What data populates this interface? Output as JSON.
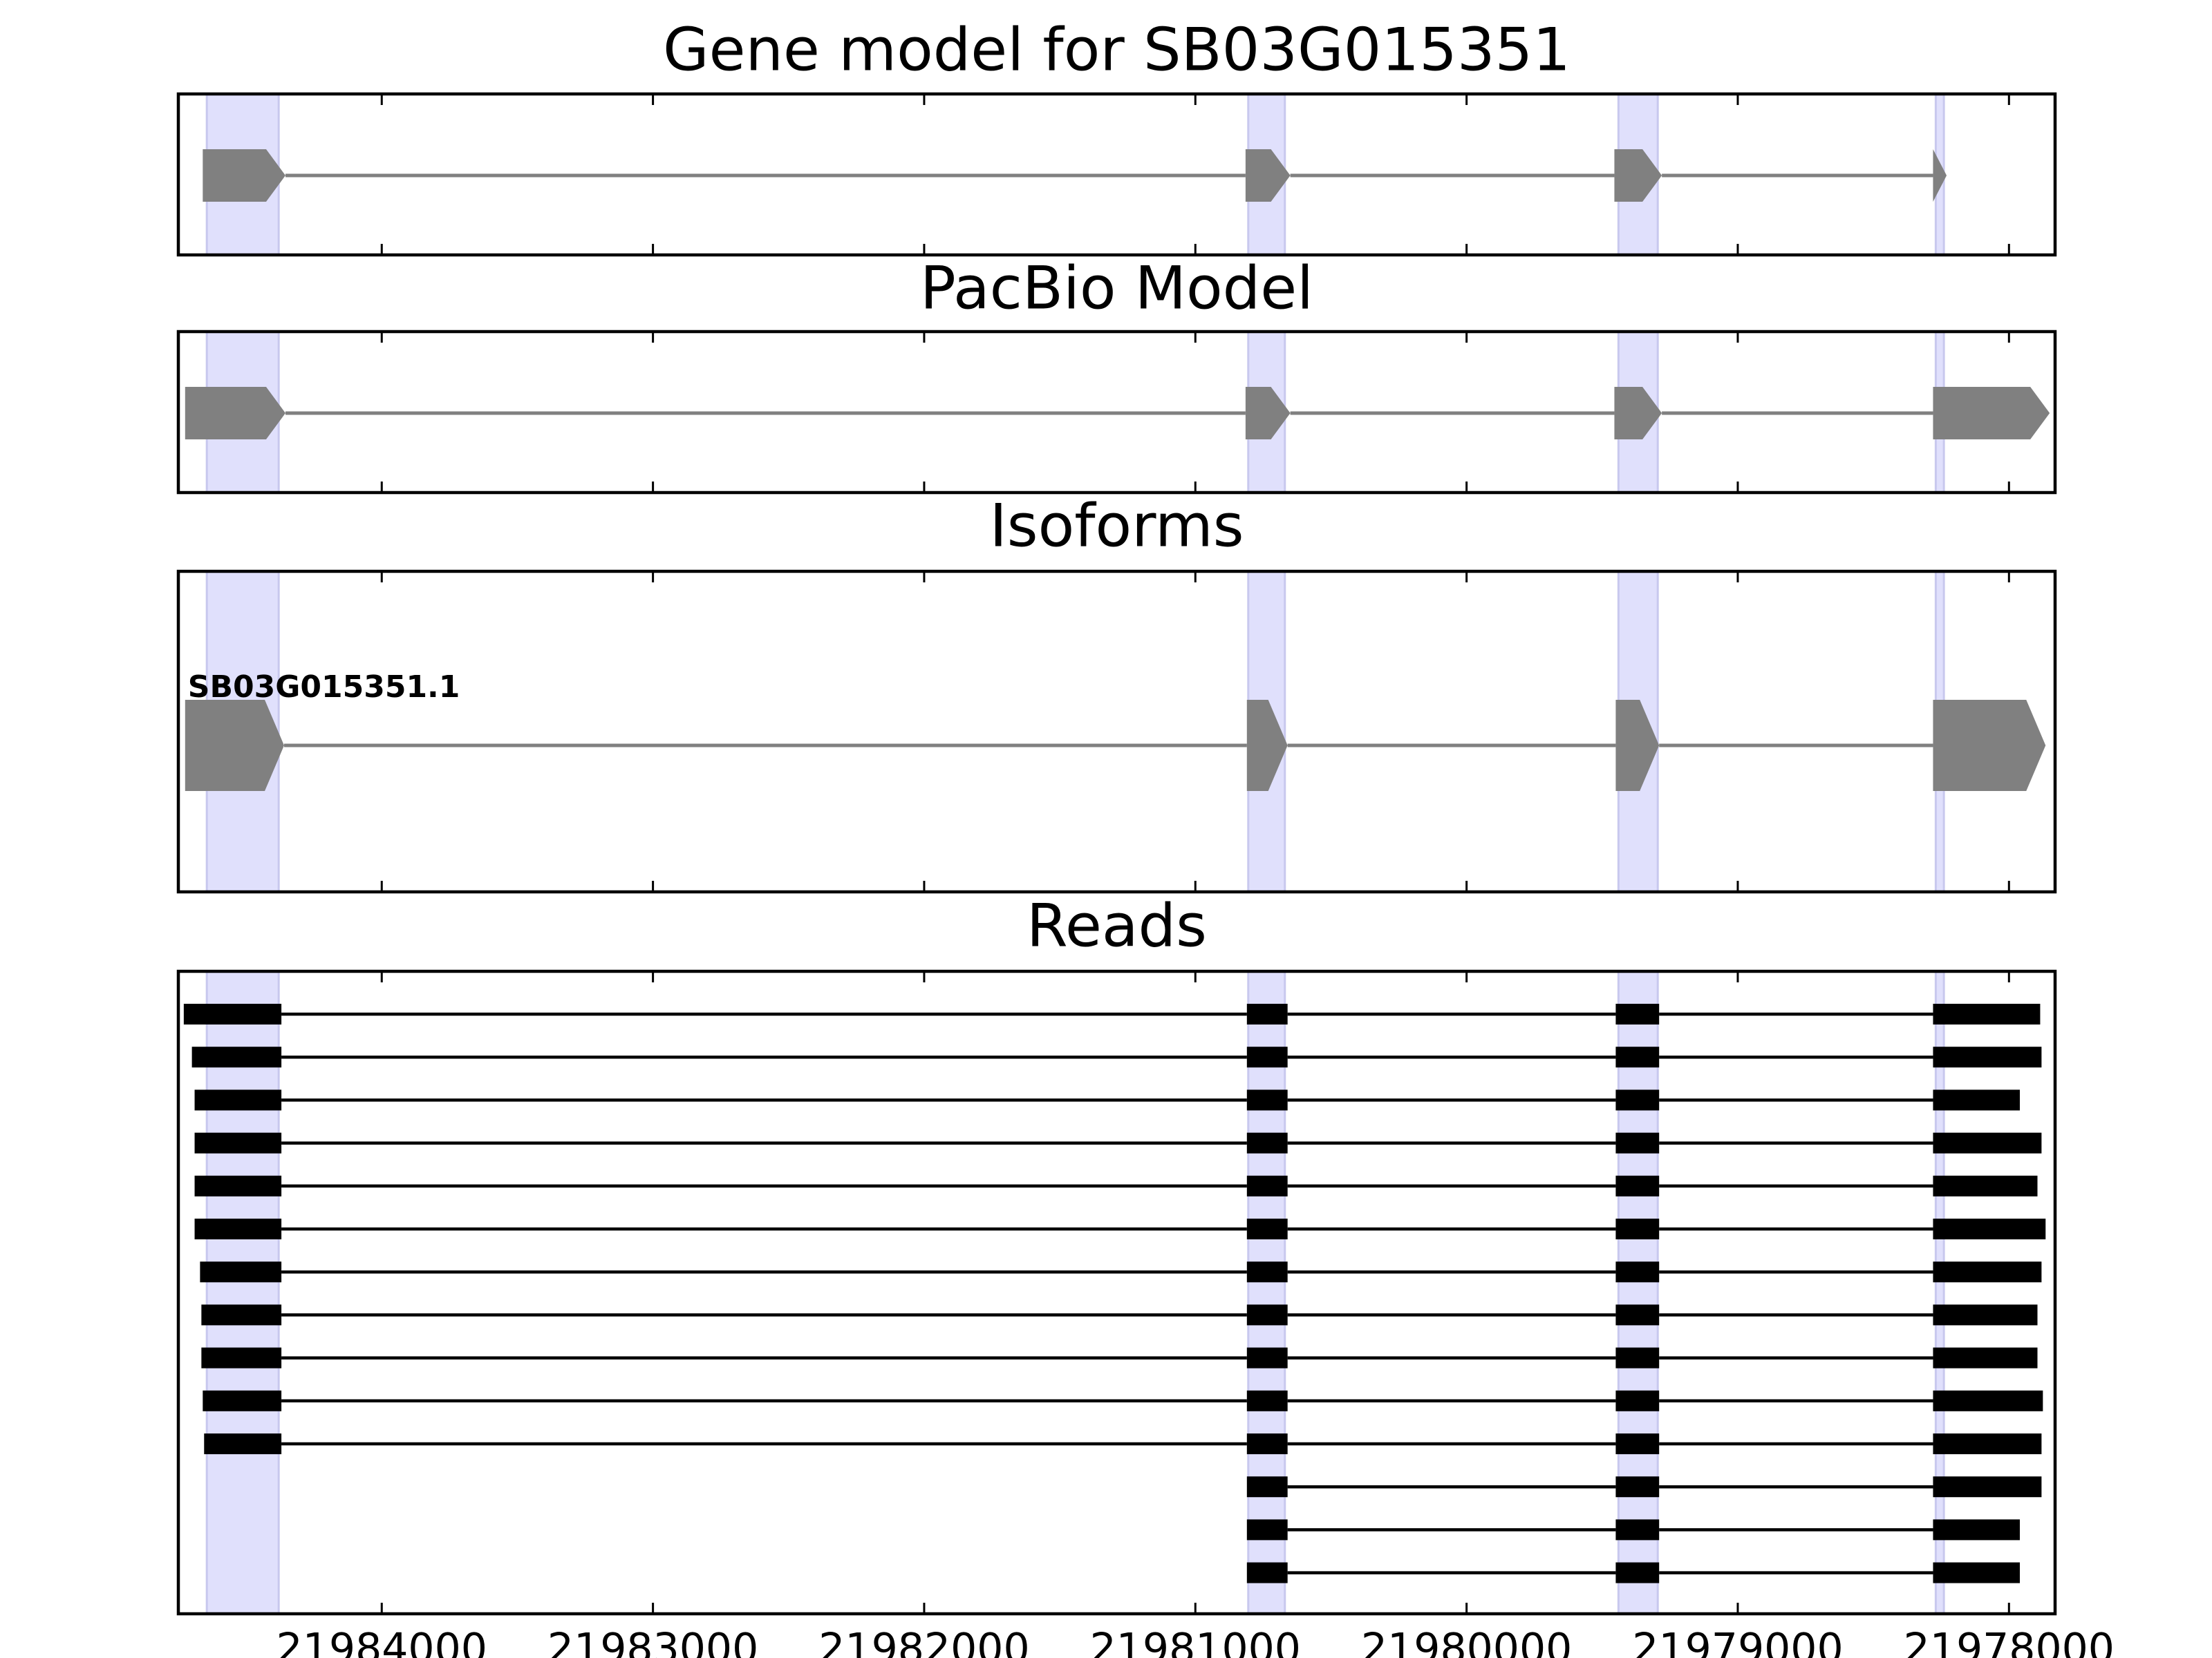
{
  "chart_data": {
    "type": "gene_tracks",
    "xlim": [
      21984750,
      21977830
    ],
    "xticks": [
      21984000,
      21983000,
      21982000,
      21981000,
      21980000,
      21979000,
      21978000
    ],
    "highlight_color": "#e0e0fc",
    "model_color": "#808080",
    "read_color": "#000000",
    "highlights": [
      [
        21984645,
        21984380
      ],
      [
        21980805,
        21980670
      ],
      [
        21979440,
        21979295
      ],
      [
        21978270,
        21978240
      ]
    ],
    "panels": [
      {
        "title": "Gene model for SB03G015351",
        "exons": [
          [
            21984660,
            21984355
          ],
          [
            21980815,
            21980650
          ],
          [
            21979455,
            21979280
          ],
          [
            21978280,
            21978230
          ]
        ]
      },
      {
        "title": "PacBio Model",
        "exons": [
          [
            21984725,
            21984355
          ],
          [
            21980815,
            21980650
          ],
          [
            21979455,
            21979280
          ],
          [
            21978280,
            21977850
          ]
        ]
      },
      {
        "title": "Isoforms",
        "isoforms": [
          {
            "name": "SB03G015351.1",
            "exons": [
              [
                21984725,
                21984360
              ],
              [
                21980810,
                21980660
              ],
              [
                21979450,
                21979290
              ],
              [
                21978280,
                21977865
              ]
            ]
          }
        ]
      },
      {
        "title": "Reads",
        "reads": [
          [
            [
              21984730,
              21984370
            ],
            [
              21980810,
              21980660
            ],
            [
              21979450,
              21979290
            ],
            [
              21978280,
              21977885
            ]
          ],
          [
            [
              21984700,
              21984370
            ],
            [
              21980810,
              21980660
            ],
            [
              21979450,
              21979290
            ],
            [
              21978280,
              21977880
            ]
          ],
          [
            [
              21984690,
              21984370
            ],
            [
              21980810,
              21980660
            ],
            [
              21979450,
              21979290
            ],
            [
              21978280,
              21977960
            ]
          ],
          [
            [
              21984690,
              21984370
            ],
            [
              21980810,
              21980660
            ],
            [
              21979450,
              21979290
            ],
            [
              21978280,
              21977880
            ]
          ],
          [
            [
              21984690,
              21984370
            ],
            [
              21980810,
              21980660
            ],
            [
              21979450,
              21979290
            ],
            [
              21978280,
              21977895
            ]
          ],
          [
            [
              21984690,
              21984370
            ],
            [
              21980810,
              21980660
            ],
            [
              21979450,
              21979290
            ],
            [
              21978280,
              21977865
            ]
          ],
          [
            [
              21984670,
              21984370
            ],
            [
              21980810,
              21980660
            ],
            [
              21979450,
              21979290
            ],
            [
              21978280,
              21977880
            ]
          ],
          [
            [
              21984665,
              21984370
            ],
            [
              21980810,
              21980660
            ],
            [
              21979450,
              21979290
            ],
            [
              21978280,
              21977895
            ]
          ],
          [
            [
              21984665,
              21984370
            ],
            [
              21980810,
              21980660
            ],
            [
              21979450,
              21979290
            ],
            [
              21978280,
              21977895
            ]
          ],
          [
            [
              21984660,
              21984370
            ],
            [
              21980810,
              21980660
            ],
            [
              21979450,
              21979290
            ],
            [
              21978280,
              21977875
            ]
          ],
          [
            [
              21984655,
              21984370
            ],
            [
              21980810,
              21980660
            ],
            [
              21979450,
              21979290
            ],
            [
              21978280,
              21977880
            ]
          ],
          [
            [
              21980810,
              21980660
            ],
            [
              21979450,
              21979290
            ],
            [
              21978280,
              21977880
            ]
          ],
          [
            [
              21980810,
              21980660
            ],
            [
              21979450,
              21979290
            ],
            [
              21978280,
              21977960
            ]
          ],
          [
            [
              21980810,
              21980660
            ],
            [
              21979450,
              21979290
            ],
            [
              21978280,
              21977960
            ]
          ]
        ]
      }
    ]
  }
}
